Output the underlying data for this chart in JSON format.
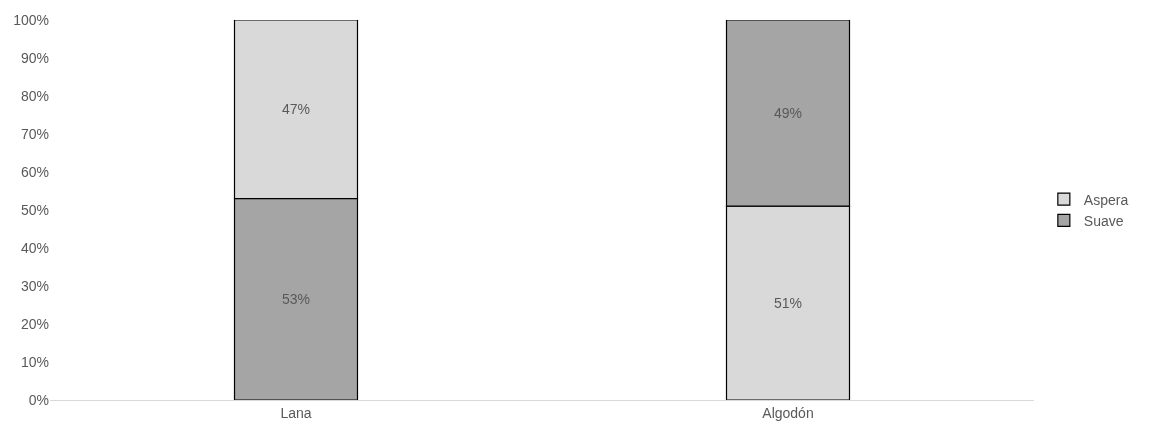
{
  "chart_data": {
    "type": "bar",
    "categories": [
      "Lana",
      "Algodón"
    ],
    "series": [
      {
        "name": "Aspera",
        "color": "#d9d9d9",
        "values": [
          47,
          51
        ],
        "base": [
          53,
          0
        ],
        "value_labels": [
          "47%",
          "51%"
        ]
      },
      {
        "name": "Suave",
        "color": "#a5a5a5",
        "values": [
          53,
          49
        ],
        "base": [
          0,
          51
        ],
        "value_labels": [
          "53%",
          "49%"
        ]
      }
    ],
    "ylim": [
      0,
      100
    ],
    "yticks": [
      {
        "value": 0,
        "label": "0%"
      },
      {
        "value": 10,
        "label": "10%"
      },
      {
        "value": 20,
        "label": "20%"
      },
      {
        "value": 30,
        "label": "30%"
      },
      {
        "value": 40,
        "label": "40%"
      },
      {
        "value": 50,
        "label": "50%"
      },
      {
        "value": 60,
        "label": "60%"
      },
      {
        "value": 70,
        "label": "70%"
      },
      {
        "value": 80,
        "label": "80%"
      },
      {
        "value": 90,
        "label": "90%"
      },
      {
        "value": 100,
        "label": "100%"
      }
    ],
    "legend": "right"
  }
}
